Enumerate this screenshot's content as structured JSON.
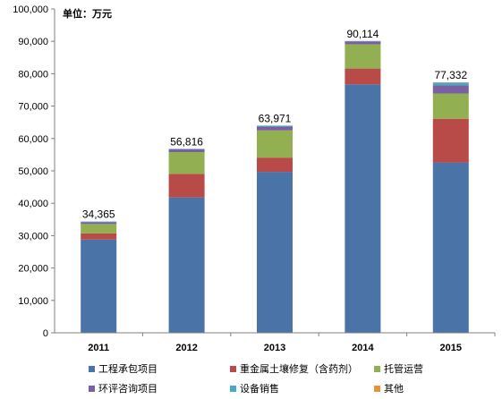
{
  "unit_label": "单位：万元",
  "chart_data": {
    "type": "bar",
    "stacked": true,
    "categories": [
      "2011",
      "2012",
      "2013",
      "2014",
      "2015"
    ],
    "totals_labels": [
      "34,365",
      "56,816",
      "63,971",
      "90,114",
      "77,332"
    ],
    "series": [
      {
        "name": "工程承包项目",
        "color": "#4A73A8",
        "values": [
          28800,
          41800,
          49700,
          76700,
          52600
        ]
      },
      {
        "name": "重金属土壤修复（含药剂）",
        "color": "#B84A47",
        "values": [
          1900,
          7300,
          4400,
          4900,
          13500
        ]
      },
      {
        "name": "托管运营",
        "color": "#92B052",
        "values": [
          2900,
          6700,
          8400,
          7500,
          7800
        ]
      },
      {
        "name": "环评咨询项目",
        "color": "#7B5FA3",
        "values": [
          600,
          900,
          1200,
          900,
          2500
        ]
      },
      {
        "name": "设备销售",
        "color": "#48A9C6",
        "values": [
          165,
          116,
          271,
          114,
          832
        ]
      },
      {
        "name": "其他",
        "color": "#E8923A",
        "values": [
          0,
          0,
          0,
          0,
          100
        ]
      }
    ],
    "ylim": [
      0,
      100000
    ],
    "yticks": [
      0,
      10000,
      20000,
      30000,
      40000,
      50000,
      60000,
      70000,
      80000,
      90000,
      100000
    ],
    "ytick_labels": [
      "0",
      "10,000",
      "20,000",
      "30,000",
      "40,000",
      "50,000",
      "60,000",
      "70,000",
      "80,000",
      "90,000",
      "100,000"
    ],
    "grid": false,
    "legend_position": "bottom"
  }
}
